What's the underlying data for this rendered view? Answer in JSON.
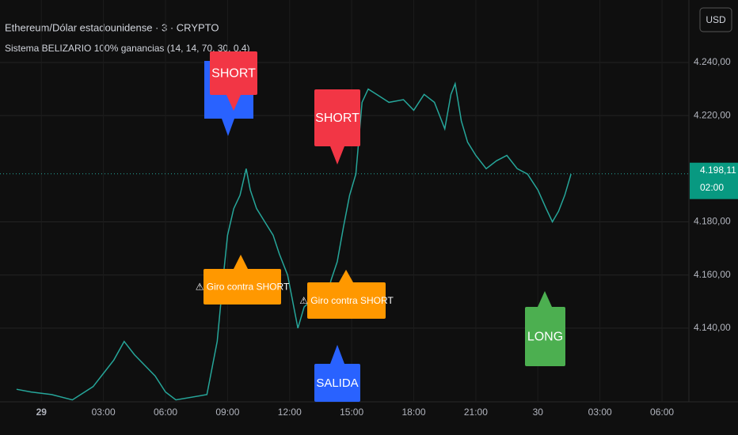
{
  "chart_data": {
    "type": "line",
    "title": "Ethereum/Dólar estadounidense · 3 · CRYPTO",
    "subtitle": "Sistema BELIZARIO 100% ganancias (14, 14, 70, 30, 0,4)",
    "currency": "USD",
    "last_price": {
      "value": 4198.11,
      "label": "4.198,11"
    },
    "countdown": "02:00",
    "color": "#26a69a",
    "grid": true,
    "xlim": [
      -2,
      31.3
    ],
    "ylim": [
      4112.3,
      4263.5
    ],
    "xticks": [
      {
        "value": 0,
        "label": "29"
      },
      {
        "value": 3,
        "label": "03:00"
      },
      {
        "value": 6,
        "label": "06:00"
      },
      {
        "value": 9,
        "label": "09:00"
      },
      {
        "value": 12,
        "label": "12:00"
      },
      {
        "value": 15,
        "label": "15:00"
      },
      {
        "value": 18,
        "label": "18:00"
      },
      {
        "value": 21,
        "label": "21:00"
      },
      {
        "value": 24,
        "label": "30"
      },
      {
        "value": 27,
        "label": "03:00"
      },
      {
        "value": 30,
        "label": "06:00"
      }
    ],
    "yticks": [
      {
        "value": 4140,
        "label": "4.140,00"
      },
      {
        "value": 4160,
        "label": "4.160,00"
      },
      {
        "value": 4180,
        "label": "4.180,00"
      },
      {
        "value": 4220,
        "label": "4.220,00"
      },
      {
        "value": 4240,
        "label": "4.240,00"
      }
    ],
    "x": [
      -1.2,
      -0.5,
      0.5,
      1.5,
      2.5,
      3.5,
      4.0,
      4.5,
      5.0,
      5.5,
      6.0,
      6.5,
      8.0,
      8.5,
      8.8,
      9.0,
      9.3,
      9.6,
      9.9,
      10.1,
      10.4,
      10.8,
      11.2,
      11.5,
      11.9,
      12.2,
      12.4,
      12.7,
      13.0,
      13.4,
      13.8,
      14.0,
      14.3,
      14.6,
      14.9,
      15.2,
      15.5,
      15.8,
      16.2,
      16.8,
      17.5,
      18.0,
      18.5,
      19.0,
      19.5,
      19.8,
      20.0,
      20.3,
      20.6,
      21.0,
      21.5,
      22.0,
      22.5,
      23.0,
      23.5,
      24.0,
      24.4,
      24.7,
      25.0,
      25.3,
      25.6
    ],
    "values": [
      4117,
      4116,
      4115,
      4113,
      4118,
      4128,
      4135,
      4130,
      4126,
      4122,
      4116,
      4113,
      4115,
      4135,
      4160,
      4175,
      4185,
      4190,
      4200,
      4192,
      4185,
      4180,
      4175,
      4168,
      4160,
      4148,
      4140,
      4148,
      4150,
      4155,
      4152,
      4158,
      4165,
      4178,
      4190,
      4198,
      4225,
      4230,
      4228,
      4225,
      4226,
      4222,
      4228,
      4225,
      4215,
      4228,
      4232,
      4218,
      4210,
      4205,
      4200,
      4203,
      4205,
      4200,
      4198,
      4192,
      4185,
      4180,
      4184,
      4190,
      4198
    ],
    "signals": [
      "SHORT",
      "SHORT",
      "⚠ Giro contra SHORT",
      "⚠ Giro contra SHORT",
      "SALIDA",
      "LONG"
    ]
  }
}
